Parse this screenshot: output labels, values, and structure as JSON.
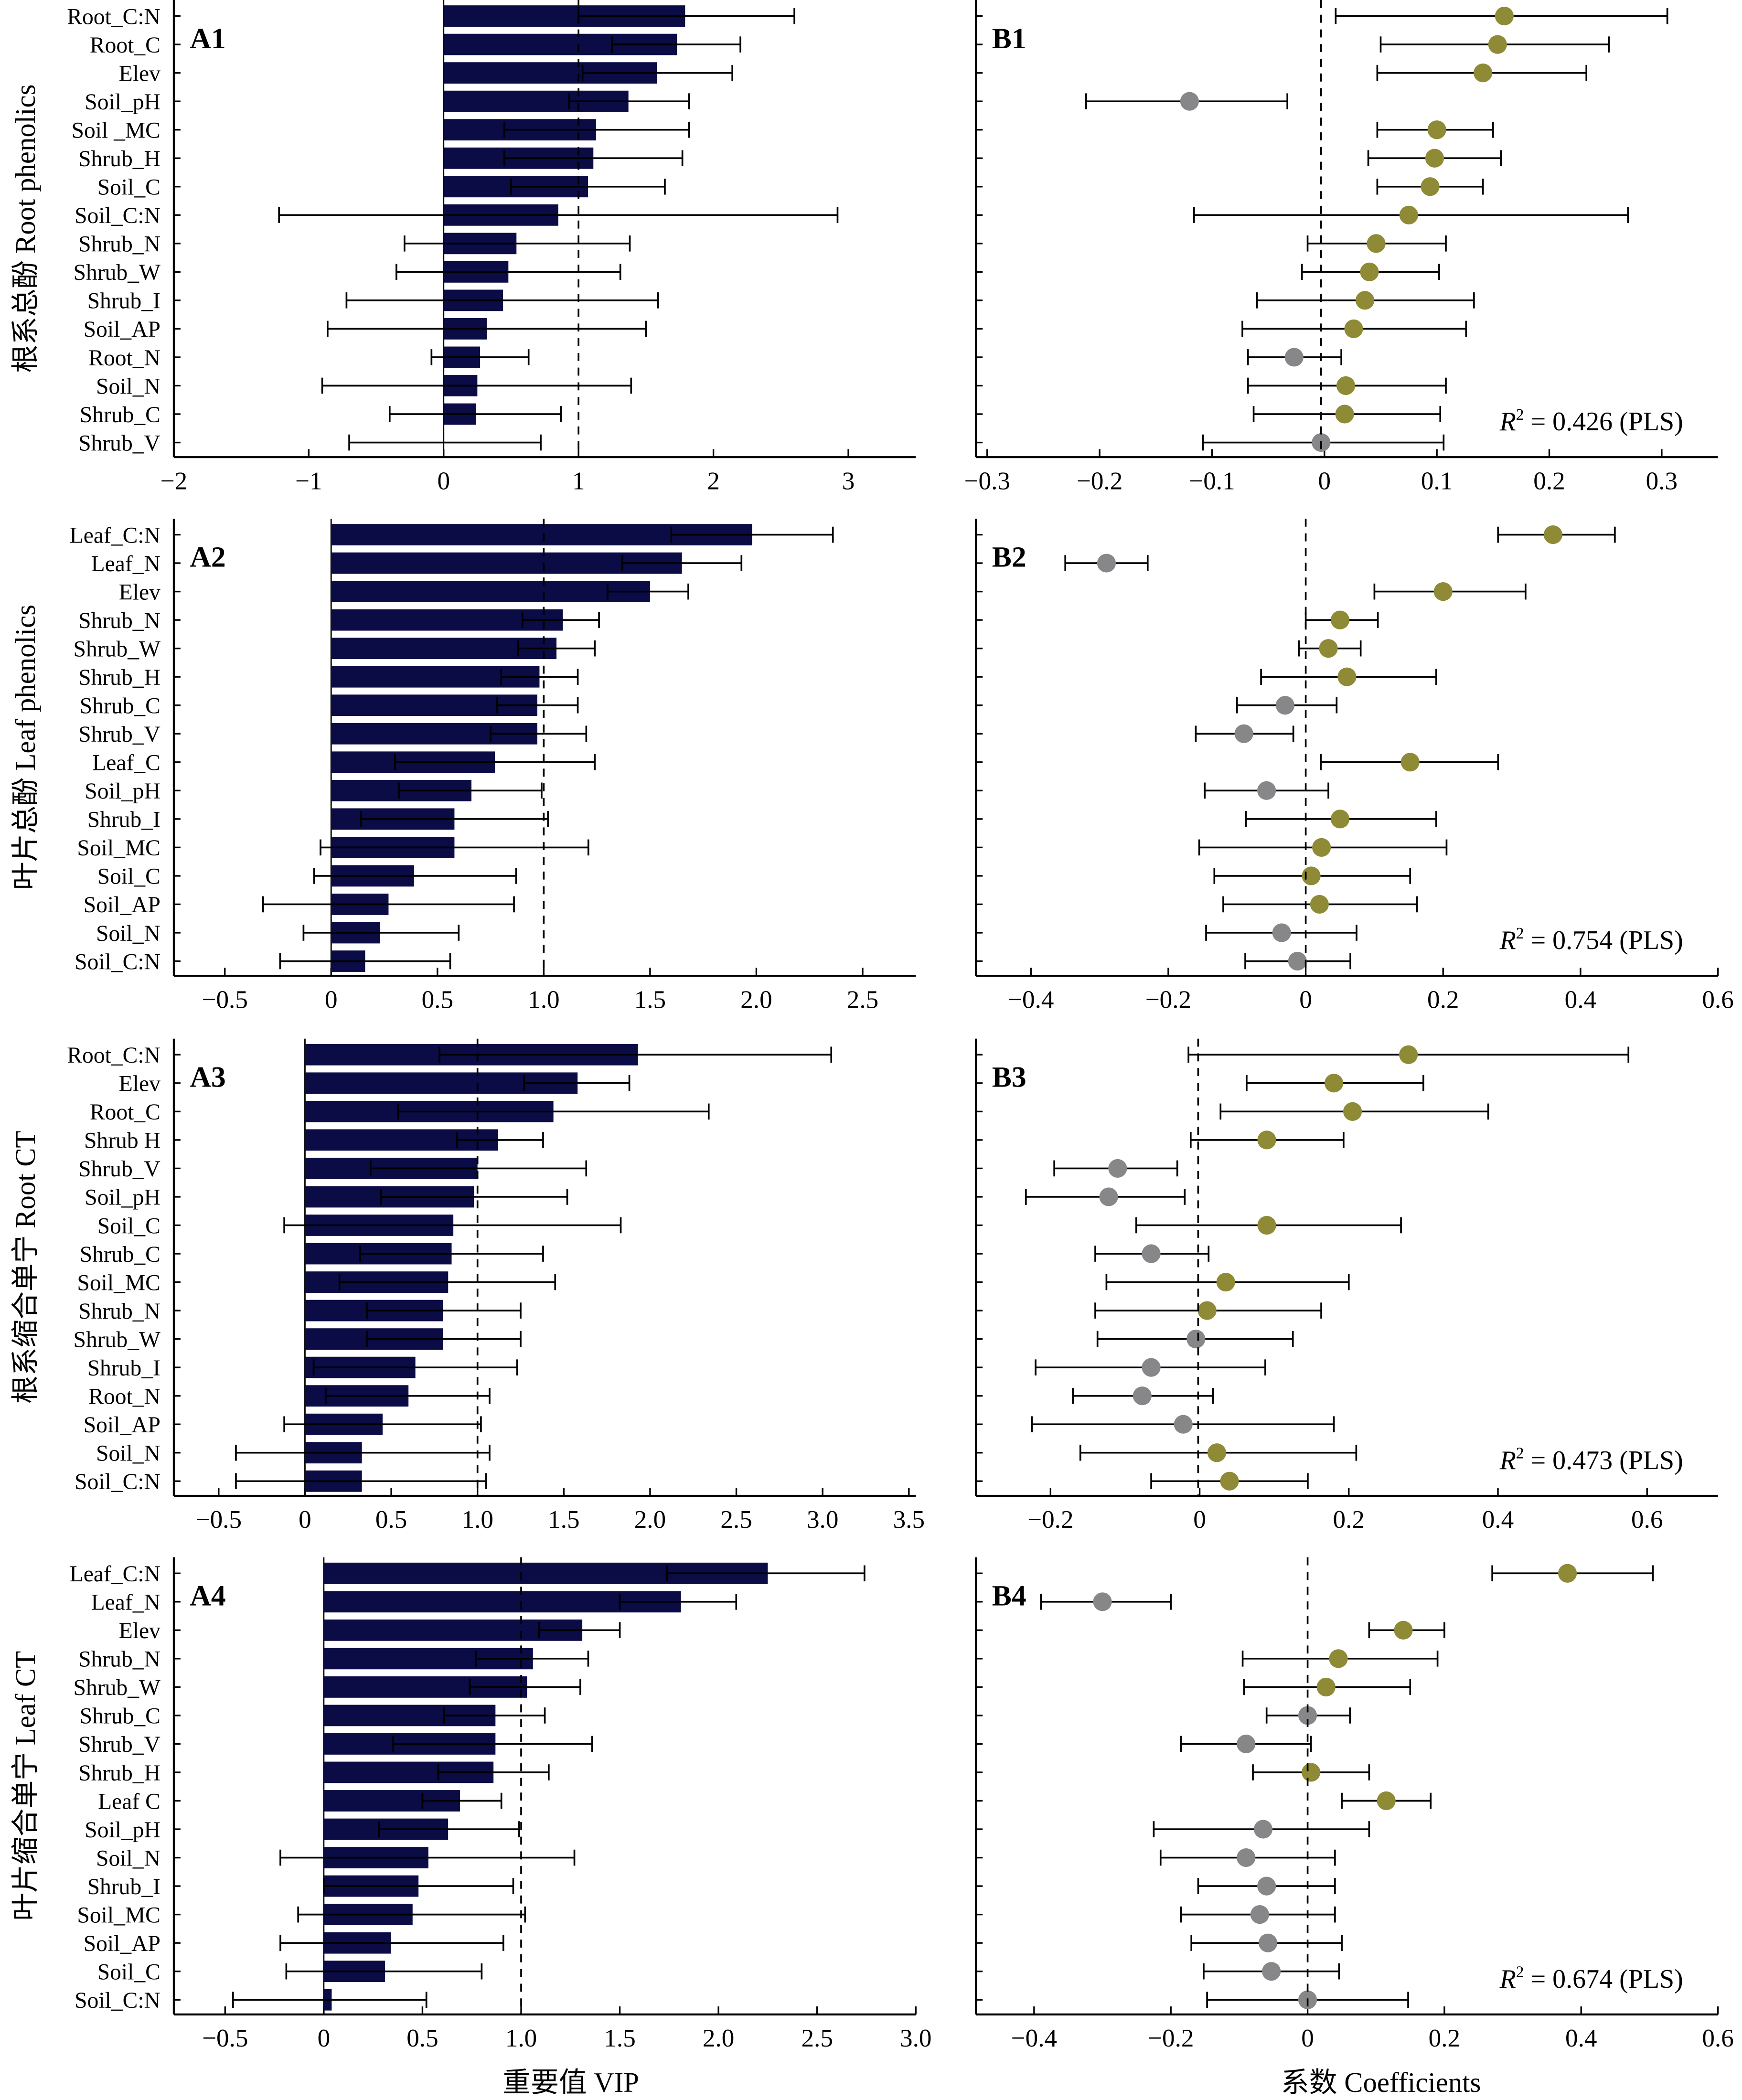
{
  "colors": {
    "bar": "#0b0b45",
    "positive": "#8e8a36",
    "negative": "#87878a",
    "axis": "#000000"
  },
  "x_titles": {
    "vip": "重要值 VIP",
    "coef": "系数 Coefficients"
  },
  "chart_data": [
    {
      "type": "bar",
      "panel": "A1",
      "ylabel": "根系总酚 Root phenolics",
      "xlim": [
        -2,
        3.5
      ],
      "ref_line": 1,
      "ticks": [
        -2,
        -1,
        0,
        1,
        2,
        3
      ],
      "tick_labels": [
        "−2",
        "−1",
        "0",
        "1",
        "2",
        "3"
      ],
      "categories": [
        "Root_C:N",
        "Root_C",
        "Elev",
        "Soil_pH",
        "Soil _MC",
        "Shrub_H",
        "Soil_C",
        "Soil_C:N",
        "Shrub_N",
        "Shrub_W",
        "Shrub_I",
        "Soil_AP",
        "Root_N",
        "Soil_N",
        "Shrub_C",
        "Shrub_V"
      ],
      "values": [
        1.79,
        1.73,
        1.58,
        1.37,
        1.13,
        1.11,
        1.07,
        0.85,
        0.54,
        0.48,
        0.44,
        0.32,
        0.27,
        0.25,
        0.24,
        0.0
      ],
      "err_low": [
        1.0,
        1.25,
        1.03,
        0.93,
        0.45,
        0.45,
        0.5,
        -1.22,
        -0.29,
        -0.35,
        -0.72,
        -0.86,
        -0.09,
        -0.9,
        -0.4,
        -0.7
      ],
      "err_high": [
        2.6,
        2.2,
        2.14,
        1.82,
        1.82,
        1.77,
        1.64,
        2.92,
        1.38,
        1.31,
        1.59,
        1.5,
        0.63,
        1.39,
        0.87,
        0.72
      ]
    },
    {
      "type": "scatter",
      "panel": "B1",
      "xlim": [
        -0.31,
        0.35
      ],
      "ref_line": -0.003,
      "ticks": [
        -0.3,
        -0.2,
        -0.1,
        0,
        0.1,
        0.2,
        0.3
      ],
      "tick_labels": [
        "−0.3",
        "−0.2",
        "−0.1",
        "0",
        "0.1",
        "0.2",
        "0.3"
      ],
      "r2_symbol": "R",
      "r2_sup": "2",
      "r2_text": " = 0.426 (PLS)",
      "values": [
        0.16,
        0.154,
        0.141,
        -0.12,
        0.1,
        0.098,
        0.094,
        0.075,
        0.046,
        0.04,
        0.036,
        0.026,
        -0.027,
        0.019,
        0.018,
        -0.003
      ],
      "err_low": [
        0.01,
        0.05,
        0.047,
        -0.212,
        0.047,
        0.039,
        0.047,
        -0.116,
        -0.015,
        -0.02,
        -0.06,
        -0.073,
        -0.068,
        -0.068,
        -0.063,
        -0.108
      ],
      "err_high": [
        0.305,
        0.253,
        0.233,
        -0.033,
        0.15,
        0.157,
        0.141,
        0.27,
        0.108,
        0.102,
        0.133,
        0.126,
        0.015,
        0.108,
        0.103,
        0.106
      ]
    },
    {
      "type": "bar",
      "panel": "A2",
      "ylabel": "叶片总酚 Leaf phenolics",
      "xlim": [
        -0.74,
        2.75
      ],
      "ref_line": 1,
      "ticks": [
        -0.5,
        0,
        0.5,
        1,
        1.5,
        2,
        2.5
      ],
      "tick_labels": [
        "−0.5",
        "0",
        "0.5",
        "1.0",
        "1.5",
        "2.0",
        "2.5"
      ],
      "categories": [
        "Leaf_C:N",
        "Leaf_N",
        "Elev",
        "Shrub_N",
        "Shrub_W",
        "Shrub_H",
        "Shrub_C",
        "Shrub_V",
        "Leaf_C",
        "Soil_pH",
        "Shrub_I",
        "Soil_MC",
        "Soil_C",
        "Soil_AP",
        "Soil_N",
        "Soil_C:N"
      ],
      "values": [
        1.98,
        1.65,
        1.5,
        1.09,
        1.06,
        0.98,
        0.97,
        0.97,
        0.77,
        0.66,
        0.58,
        0.58,
        0.39,
        0.27,
        0.23,
        0.16
      ],
      "err_low": [
        1.6,
        1.37,
        1.3,
        0.9,
        0.88,
        0.8,
        0.78,
        0.75,
        0.3,
        0.32,
        0.14,
        -0.05,
        -0.08,
        -0.32,
        -0.13,
        -0.24
      ],
      "err_high": [
        2.36,
        1.93,
        1.68,
        1.26,
        1.24,
        1.16,
        1.16,
        1.2,
        1.24,
        0.99,
        1.02,
        1.21,
        0.87,
        0.86,
        0.6,
        0.56
      ]
    },
    {
      "type": "scatter",
      "panel": "B2",
      "xlim": [
        -0.48,
        0.6
      ],
      "ref_line": 0,
      "ticks": [
        -0.4,
        -0.2,
        0,
        0.2,
        0.4,
        0.6
      ],
      "tick_labels": [
        "−0.4",
        "−0.2",
        "0",
        "0.2",
        "0.4",
        "0.6"
      ],
      "r2_symbol": "R",
      "r2_sup": "2",
      "r2_text": " = 0.754 (PLS)",
      "values": [
        0.36,
        -0.29,
        0.2,
        0.05,
        0.033,
        0.06,
        -0.03,
        -0.09,
        0.152,
        -0.057,
        0.05,
        0.023,
        0.008,
        0.02,
        -0.035,
        -0.012
      ],
      "err_low": [
        0.28,
        -0.35,
        0.1,
        0.0,
        -0.01,
        -0.065,
        -0.1,
        -0.16,
        0.022,
        -0.147,
        -0.087,
        -0.155,
        -0.133,
        -0.12,
        -0.145,
        -0.088
      ],
      "err_high": [
        0.45,
        -0.23,
        0.32,
        0.105,
        0.08,
        0.19,
        0.045,
        -0.018,
        0.28,
        0.033,
        0.19,
        0.205,
        0.152,
        0.162,
        0.074,
        0.065
      ]
    },
    {
      "type": "bar",
      "panel": "A3",
      "ylabel": "根系缩合单宁 Root CT",
      "xlim": [
        -0.76,
        3.54
      ],
      "ref_line": 1,
      "ticks": [
        -0.5,
        0,
        0.5,
        1,
        1.5,
        2,
        2.5,
        3,
        3.5
      ],
      "tick_labels": [
        "−0.5",
        "0",
        "0.5",
        "1.0",
        "1.5",
        "2.0",
        "2.5",
        "3.0",
        "3.5"
      ],
      "categories": [
        "Root_C:N",
        "Elev",
        "Root_C",
        "Shrub H",
        "Shrub_V",
        "Soil_pH",
        "Soil_C",
        "Shrub_C",
        "Soil_MC",
        "Shrub_N",
        "Shrub_W",
        "Shrub_I",
        "Root_N",
        "Soil_AP",
        "Soil_N",
        "Soil_C:N"
      ],
      "values": [
        1.93,
        1.58,
        1.44,
        1.12,
        1.0,
        0.98,
        0.86,
        0.85,
        0.83,
        0.8,
        0.8,
        0.64,
        0.6,
        0.45,
        0.33,
        0.33
      ],
      "err_low": [
        0.78,
        1.27,
        0.54,
        0.88,
        0.38,
        0.44,
        -0.12,
        0.32,
        0.2,
        0.36,
        0.36,
        0.05,
        0.12,
        -0.12,
        -0.4,
        -0.4
      ],
      "err_high": [
        3.05,
        1.88,
        2.34,
        1.38,
        1.63,
        1.52,
        1.83,
        1.38,
        1.45,
        1.25,
        1.25,
        1.23,
        1.07,
        1.02,
        1.07,
        1.05
      ]
    },
    {
      "type": "scatter",
      "panel": "B3",
      "xlim": [
        -0.3,
        0.695
      ],
      "ref_line": -0.002,
      "ticks": [
        -0.2,
        0,
        0.2,
        0.4,
        0.6
      ],
      "tick_labels": [
        "−0.2",
        "0",
        "0.2",
        "0.4",
        "0.6"
      ],
      "r2_symbol": "R",
      "r2_sup": "2",
      "r2_text": " = 0.473 (PLS)",
      "values": [
        0.28,
        0.18,
        0.205,
        0.09,
        -0.11,
        -0.122,
        0.09,
        -0.065,
        0.035,
        0.01,
        -0.005,
        -0.065,
        -0.077,
        -0.022,
        0.023,
        0.04
      ],
      "err_low": [
        -0.015,
        0.063,
        0.028,
        -0.012,
        -0.195,
        -0.233,
        -0.085,
        -0.14,
        -0.125,
        -0.14,
        -0.137,
        -0.22,
        -0.17,
        -0.225,
        -0.16,
        -0.065
      ],
      "err_high": [
        0.575,
        0.3,
        0.387,
        0.193,
        -0.03,
        -0.02,
        0.27,
        0.012,
        0.2,
        0.163,
        0.125,
        0.088,
        0.018,
        0.18,
        0.21,
        0.145
      ]
    },
    {
      "type": "bar",
      "panel": "A4",
      "ylabel": "叶片缩合单宁 Leaf CT",
      "xlim": [
        -0.76,
        3.0
      ],
      "ref_line": 1,
      "ticks": [
        -0.5,
        0,
        0.5,
        1,
        1.5,
        2,
        2.5,
        3
      ],
      "tick_labels": [
        "−0.5",
        "0",
        "0.5",
        "1.0",
        "1.5",
        "2.0",
        "2.5",
        "3.0"
      ],
      "categories": [
        "Leaf_C:N",
        "Leaf_N",
        "Elev",
        "Shrub_N",
        "Shrub_W",
        "Shrub_C",
        "Shrub_V",
        "Shrub_H",
        "Leaf C",
        "Soil_pH",
        "Soil_N",
        "Shrub_I",
        "Soil_MC",
        "Soil_AP",
        "Soil_C",
        "Soil_C:N"
      ],
      "values": [
        2.25,
        1.81,
        1.31,
        1.06,
        1.03,
        0.87,
        0.87,
        0.86,
        0.69,
        0.63,
        0.53,
        0.48,
        0.45,
        0.34,
        0.31,
        0.04
      ],
      "err_low": [
        1.74,
        1.5,
        1.09,
        0.77,
        0.74,
        0.61,
        0.35,
        0.58,
        0.5,
        0.28,
        -0.22,
        0.0,
        -0.13,
        -0.22,
        -0.19,
        -0.46
      ],
      "err_high": [
        2.74,
        2.09,
        1.5,
        1.34,
        1.3,
        1.12,
        1.36,
        1.14,
        0.9,
        0.99,
        1.27,
        0.96,
        1.02,
        0.91,
        0.8,
        0.52
      ]
    },
    {
      "type": "scatter",
      "panel": "B4",
      "xlim": [
        -0.485,
        0.6
      ],
      "ref_line": 0,
      "ticks": [
        -0.4,
        -0.2,
        0,
        0.2,
        0.4,
        0.6
      ],
      "tick_labels": [
        "−0.4",
        "−0.2",
        "0",
        "0.2",
        "0.4",
        "0.6"
      ],
      "r2_symbol": "R",
      "r2_sup": "2",
      "r2_text": " = 0.674 (PLS)",
      "values": [
        0.38,
        -0.3,
        0.14,
        0.045,
        0.027,
        0.0,
        -0.09,
        0.005,
        0.115,
        -0.065,
        -0.09,
        -0.06,
        -0.07,
        -0.058,
        -0.053,
        0.0
      ],
      "err_low": [
        0.27,
        -0.39,
        0.09,
        -0.095,
        -0.093,
        -0.06,
        -0.185,
        -0.08,
        0.05,
        -0.225,
        -0.215,
        -0.16,
        -0.185,
        -0.17,
        -0.152,
        -0.147
      ],
      "err_high": [
        0.505,
        -0.2,
        0.2,
        0.19,
        0.15,
        0.062,
        0.005,
        0.09,
        0.18,
        0.09,
        0.04,
        0.04,
        0.04,
        0.05,
        0.046,
        0.147
      ]
    }
  ]
}
